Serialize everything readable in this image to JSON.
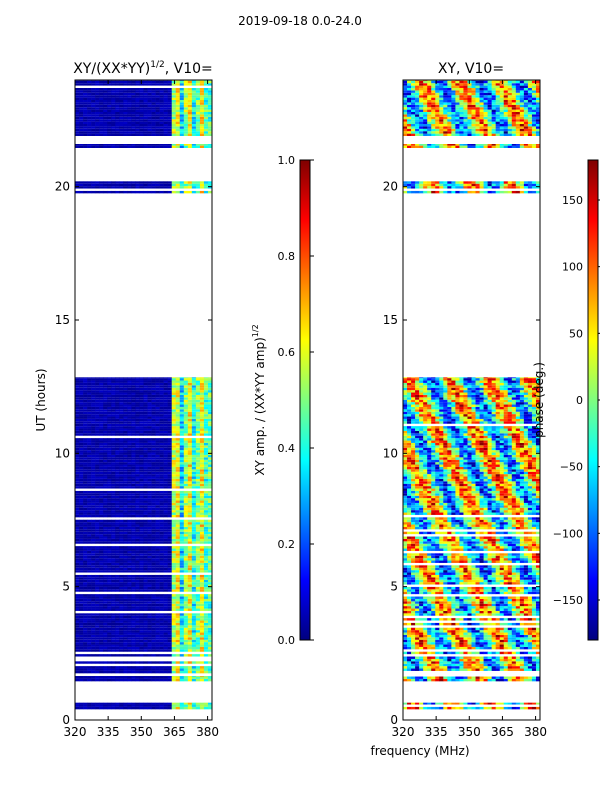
{
  "figure": {
    "suptitle": "2019-09-18 0.0-24.0",
    "shared_xlabel": "frequency (MHz)"
  },
  "chart_data": [
    {
      "type": "heatmap",
      "title": "XY/(XX*YY)^1/2, V10=",
      "title_main": "XY/(XX*YY)",
      "title_sup": "1/2",
      "title_tail": ", V10=",
      "xlabel": "",
      "ylabel": "UT (hours)",
      "xlim": [
        320,
        382
      ],
      "ylim": [
        0,
        24
      ],
      "x_ticks": [
        320,
        335,
        350,
        365,
        380
      ],
      "y_ticks": [
        0,
        5,
        10,
        15,
        20
      ],
      "colorbar": {
        "label": "XY amp. / (XX*YY amp)^1/2",
        "label_main": "XY amp. / (XX*YY amp)",
        "label_sup": "1/2",
        "range": [
          0.0,
          1.0
        ],
        "ticks": [
          "0.0",
          "0.2",
          "0.4",
          "0.6",
          "0.8",
          "1.0"
        ],
        "tick_values": [
          0.0,
          0.2,
          0.4,
          0.6,
          0.8,
          1.0
        ]
      },
      "data_bands_hours": [
        [
          0.4,
          0.65
        ],
        [
          1.45,
          1.65
        ],
        [
          1.75,
          12.85
        ],
        [
          19.75,
          20.2
        ],
        [
          21.45,
          21.6
        ],
        [
          21.9,
          24.0
        ]
      ]
    },
    {
      "type": "heatmap",
      "title": "XY, V10=",
      "xlabel": "frequency (MHz)",
      "ylabel": "",
      "xlim": [
        320,
        382
      ],
      "ylim": [
        0,
        24
      ],
      "x_ticks": [
        320,
        335,
        350,
        365,
        380
      ],
      "y_ticks": [
        0,
        5,
        10,
        15,
        20
      ],
      "colorbar": {
        "label": "phase (deg.)",
        "range": [
          -180,
          180
        ],
        "ticks": [
          "150",
          "100",
          "50",
          "0",
          "−50",
          "−100",
          "−150"
        ],
        "tick_values": [
          150,
          100,
          50,
          0,
          -50,
          -100,
          -150
        ]
      },
      "data_bands_hours": [
        [
          0.4,
          0.65
        ],
        [
          1.45,
          1.65
        ],
        [
          1.75,
          12.85
        ],
        [
          19.75,
          20.2
        ],
        [
          21.45,
          21.6
        ],
        [
          21.9,
          24.0
        ]
      ]
    }
  ],
  "colormap": "jet",
  "colors": {
    "jet": [
      "#00007f",
      "#0000ff",
      "#007fff",
      "#00ffff",
      "#7fff7f",
      "#ffff00",
      "#ff7f00",
      "#ff0000",
      "#7f0000"
    ],
    "background": "#ffffff",
    "axes": "#000000"
  }
}
